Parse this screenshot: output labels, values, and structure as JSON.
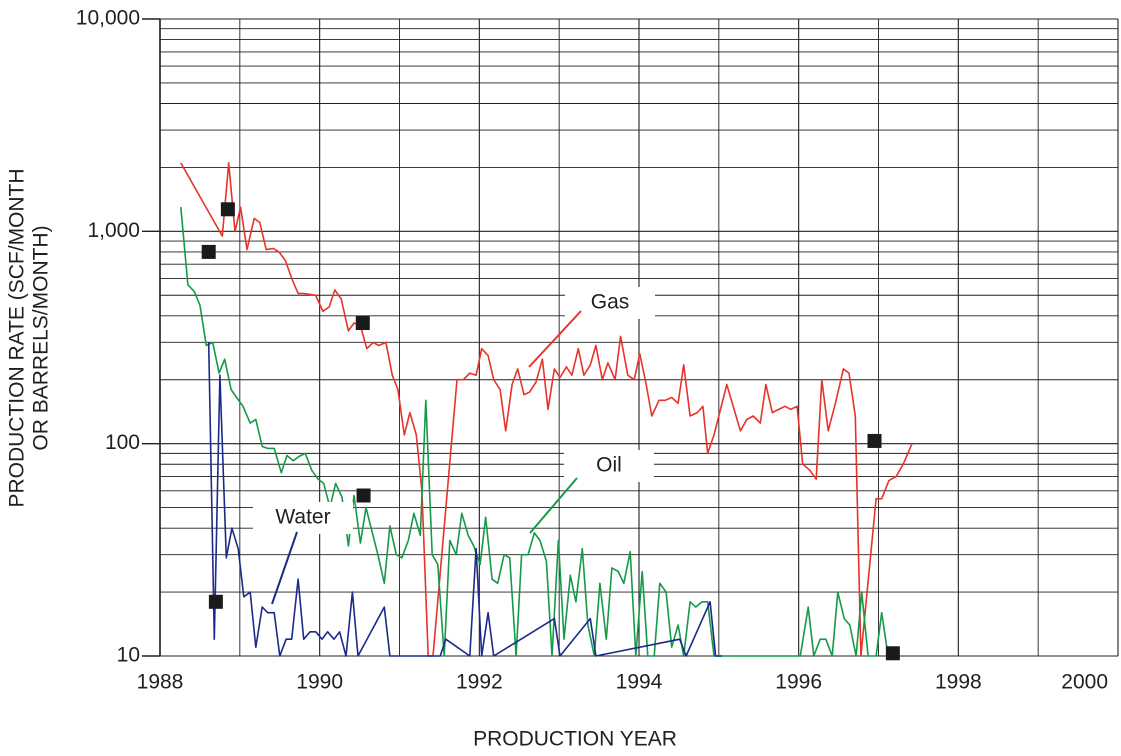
{
  "chart_data": {
    "type": "line",
    "xlabel": "PRODUCTION YEAR",
    "ylabel": [
      "PRODUCTION RATE (SCF/MONTH",
      "OR BARRELS/MONTH)"
    ],
    "log_y": true,
    "grid": true,
    "xlim": [
      1988,
      2000
    ],
    "ylim": [
      10,
      10000
    ],
    "xticks": [
      1988,
      1990,
      1992,
      1994,
      1996,
      1998,
      2000
    ],
    "minor_xticks": [
      1989,
      1991,
      1993,
      1995,
      1997,
      1999
    ],
    "yticks": [
      {
        "value": 10,
        "label": "10"
      },
      {
        "value": 100,
        "label": "100"
      },
      {
        "value": 1000,
        "label": "1,000"
      },
      {
        "value": 10000,
        "label": "10,000"
      }
    ],
    "minor_yticks": [
      20,
      30,
      40,
      50,
      60,
      70,
      80,
      90,
      200,
      300,
      400,
      500,
      600,
      700,
      800,
      900,
      2000,
      3000,
      4000,
      5000,
      6000,
      7000,
      8000,
      9000
    ],
    "series": [
      {
        "name": "Gas",
        "color": "#e8322a",
        "x": [
          1988.26,
          1988.78,
          1988.86,
          1988.94,
          1989.01,
          1989.09,
          1989.18,
          1989.25,
          1989.33,
          1989.42,
          1989.49,
          1989.57,
          1989.65,
          1989.73,
          1989.8,
          1989.95,
          1990.04,
          1990.12,
          1990.19,
          1990.27,
          1990.36,
          1990.43,
          1990.51,
          1990.59,
          1990.67,
          1990.74,
          1990.83,
          1990.91,
          1990.98,
          1991.06,
          1991.13,
          1991.21,
          1991.28,
          1991.36,
          1991.42,
          1991.72,
          1991.8,
          1991.88,
          1991.96,
          1992.03,
          1992.11,
          1992.18,
          1992.26,
          1992.33,
          1992.41,
          1992.48,
          1992.56,
          1992.63,
          1992.71,
          1992.79,
          1992.86,
          1992.94,
          1993.01,
          1993.09,
          1993.16,
          1993.24,
          1993.31,
          1993.39,
          1993.46,
          1993.54,
          1993.61,
          1993.7,
          1993.77,
          1993.86,
          1993.94,
          1994.01,
          1994.09,
          1994.16,
          1994.25,
          1994.33,
          1994.41,
          1994.49,
          1994.56,
          1994.64,
          1994.73,
          1994.8,
          1994.86,
          1994.94,
          1995.1,
          1995.27,
          1995.35,
          1995.43,
          1995.52,
          1995.59,
          1995.67,
          1995.75,
          1995.83,
          1995.9,
          1995.98,
          1996.05,
          1996.14,
          1996.22,
          1996.29,
          1996.37,
          1996.46,
          1996.56,
          1996.63,
          1996.71,
          1996.78,
          1996.97,
          1997.04,
          1997.13,
          1997.22,
          1997.31,
          1997.42
        ],
        "values": [
          2100,
          950,
          2100,
          1000,
          1300,
          820,
          1150,
          1100,
          820,
          830,
          800,
          730,
          600,
          510,
          510,
          500,
          420,
          440,
          530,
          480,
          340,
          370,
          360,
          280,
          300,
          290,
          300,
          210,
          180,
          110,
          140,
          110,
          60,
          10,
          10,
          200,
          200,
          215,
          210,
          280,
          260,
          200,
          180,
          115,
          190,
          225,
          170,
          175,
          195,
          250,
          145,
          225,
          205,
          230,
          210,
          280,
          210,
          235,
          290,
          200,
          240,
          200,
          320,
          210,
          200,
          265,
          190,
          135,
          160,
          160,
          165,
          155,
          235,
          135,
          140,
          150,
          90,
          110,
          190,
          115,
          130,
          135,
          125,
          190,
          140,
          145,
          150,
          145,
          150,
          80,
          75,
          68,
          200,
          115,
          155,
          225,
          215,
          135,
          10,
          55,
          55,
          67,
          70,
          80,
          100
        ]
      },
      {
        "name": "Oil",
        "color": "#149a48",
        "x": [
          1988.26,
          1988.35,
          1988.43,
          1988.5,
          1988.58,
          1988.66,
          1988.74,
          1988.81,
          1988.89,
          1988.96,
          1989.04,
          1989.13,
          1989.2,
          1989.28,
          1989.35,
          1989.43,
          1989.52,
          1989.59,
          1989.67,
          1989.74,
          1989.82,
          1989.9,
          1989.98,
          1990.05,
          1990.13,
          1990.2,
          1990.28,
          1990.36,
          1990.43,
          1990.51,
          1990.58,
          1990.66,
          1990.73,
          1990.81,
          1990.88,
          1990.96,
          1991.03,
          1991.11,
          1991.18,
          1991.26,
          1991.33,
          1991.41,
          1991.48,
          1991.56,
          1991.63,
          1991.71,
          1991.78,
          1991.86,
          1991.93,
          1992.01,
          1992.08,
          1992.16,
          1992.23,
          1992.31,
          1992.38,
          1992.46,
          1992.53,
          1992.61,
          1992.69,
          1992.76,
          1992.84,
          1992.91,
          1992.99,
          1993.06,
          1993.14,
          1993.21,
          1993.29,
          1993.36,
          1993.44,
          1993.51,
          1993.59,
          1993.66,
          1993.74,
          1993.81,
          1993.89,
          1993.96,
          1994.04,
          1994.11,
          1994.19,
          1994.26,
          1994.34,
          1994.41,
          1994.49,
          1994.56,
          1994.64,
          1994.71,
          1994.79,
          1994.86,
          1994.94,
          1995.52,
          1996.02,
          1996.12,
          1996.19,
          1996.27,
          1996.34,
          1996.42,
          1996.49,
          1996.57,
          1996.64,
          1996.72,
          1996.79,
          1996.87,
          1996.97,
          1997.04,
          1997.12
        ],
        "values": [
          1300,
          560,
          520,
          450,
          290,
          300,
          215,
          250,
          180,
          165,
          150,
          125,
          130,
          97,
          95,
          95,
          73,
          88,
          83,
          87,
          90,
          75,
          68,
          65,
          50,
          65,
          56,
          33,
          57,
          34,
          50,
          38,
          30,
          22,
          41,
          30,
          29,
          35,
          47,
          37,
          160,
          30,
          27,
          10,
          35,
          30,
          47,
          37,
          33,
          27,
          45,
          23,
          22,
          30,
          29,
          10,
          30,
          30,
          38,
          35,
          28,
          10,
          35,
          12,
          24,
          18,
          32,
          14,
          10,
          22,
          12,
          26,
          25,
          22,
          31,
          10,
          25,
          10,
          10,
          22,
          20,
          11,
          14,
          10,
          18,
          17,
          18,
          18,
          10,
          10,
          10,
          17,
          10,
          12,
          12,
          10,
          20,
          15,
          14,
          10,
          20,
          10,
          10,
          16,
          10
        ]
      },
      {
        "name": "Water",
        "color": "#1a2a8a",
        "x": [
          1988.61,
          1988.68,
          1988.75,
          1988.83,
          1988.9,
          1988.98,
          1989.05,
          1989.13,
          1989.2,
          1989.28,
          1989.35,
          1989.43,
          1989.5,
          1989.58,
          1989.65,
          1989.73,
          1989.8,
          1989.88,
          1989.95,
          1990.03,
          1990.1,
          1990.18,
          1990.25,
          1990.33,
          1990.41,
          1990.48,
          1990.81,
          1990.88,
          1991.51,
          1991.58,
          1991.88,
          1991.96,
          1992.03,
          1992.11,
          1992.18,
          1992.94,
          1993.01,
          1993.39,
          1993.46,
          1994.51,
          1994.59,
          1994.89,
          1994.96,
          1995.04
        ],
        "values": [
          300,
          12,
          210,
          29,
          40,
          32,
          19,
          20,
          11,
          17,
          16,
          16,
          10,
          12,
          12,
          23,
          12,
          13,
          13,
          12,
          13,
          12,
          13,
          10,
          20,
          10,
          17,
          10,
          10,
          12,
          10,
          32,
          10,
          16,
          10,
          15,
          10,
          15,
          10,
          12,
          10,
          18,
          10,
          10
        ]
      }
    ],
    "markers": {
      "color": "#1a1a1a",
      "x": [
        1988.61,
        1988.85,
        1990.54,
        1996.95,
        1988.7,
        1990.55,
        1997.18
      ],
      "values": [
        800,
        1270,
        370,
        103,
        18,
        57,
        10.3
      ]
    },
    "annotations": [
      {
        "text": "Gas"
      },
      {
        "text": "Oil"
      },
      {
        "text": "Water"
      }
    ]
  }
}
